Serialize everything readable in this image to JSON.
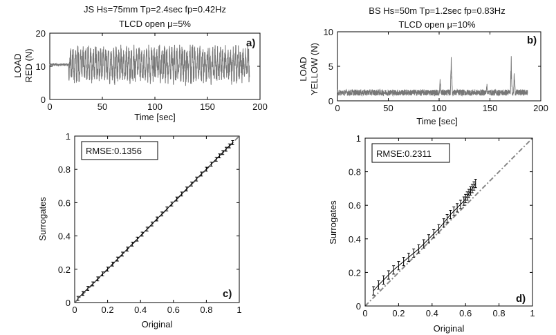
{
  "chart_data": [
    {
      "id": "a",
      "type": "line",
      "title": "JS Hs=75mm Tp=2.4sec fp=0.42Hz",
      "subtitle": "TLCD open μ=5%",
      "panel_label": "a)",
      "xlabel": "Time [sec]",
      "ylabel_lines": [
        "LOAD",
        "RED (N)"
      ],
      "xlim": [
        0,
        200
      ],
      "ylim": [
        0,
        20
      ],
      "xticks": [
        "0",
        "50",
        "100",
        "150",
        "200"
      ],
      "yticks": [
        "0",
        "10",
        "20"
      ],
      "line_color": "#777777",
      "signal": {
        "duration": 190,
        "quiet_until": 18,
        "baseline": 10.5,
        "min": 3,
        "max": 16.5
      }
    },
    {
      "id": "b",
      "type": "line",
      "title": "BS Hs=50m Tp=1.2sec fp=0.83Hz",
      "subtitle": "TLCD open μ=10%",
      "panel_label": "b)",
      "xlabel": "Time [sec]",
      "ylabel_lines": [
        "LOAD",
        "YELLOW (N)"
      ],
      "xlim": [
        0,
        200
      ],
      "ylim": [
        0,
        10
      ],
      "xticks": [
        "0",
        "50",
        "100",
        "150",
        "200"
      ],
      "yticks": [
        "0",
        "5",
        "10"
      ],
      "line_color": "#777777",
      "signal": {
        "duration": 187,
        "baseline": 1.2,
        "min": 0.3,
        "spikes": [
          {
            "x": 112,
            "y": 7.5
          },
          {
            "x": 171,
            "y": 6.8
          },
          {
            "x": 101,
            "y": 3.8
          },
          {
            "x": 174,
            "y": 5.0
          },
          {
            "x": 147,
            "y": 2.8
          }
        ]
      }
    },
    {
      "id": "c",
      "type": "line",
      "panel_label": "c)",
      "xlabel": "Original",
      "ylabel": "Surrogates",
      "xlim": [
        0,
        1
      ],
      "ylim": [
        0,
        1
      ],
      "xticks": [
        "0",
        "0.2",
        "0.4",
        "0.6",
        "0.8",
        "1"
      ],
      "yticks": [
        "0",
        "0.2",
        "0.4",
        "0.6",
        "0.8",
        "1"
      ],
      "rmse_label": "RMSE:0.1356",
      "reference_line": "y = x",
      "series": {
        "x": [
          0.02,
          0.05,
          0.08,
          0.11,
          0.14,
          0.17,
          0.2,
          0.23,
          0.26,
          0.29,
          0.32,
          0.35,
          0.38,
          0.41,
          0.44,
          0.47,
          0.5,
          0.53,
          0.56,
          0.59,
          0.62,
          0.65,
          0.68,
          0.71,
          0.74,
          0.77,
          0.8,
          0.83,
          0.86,
          0.88,
          0.9,
          0.92,
          0.94,
          0.96
        ],
        "y": [
          0.025,
          0.055,
          0.085,
          0.112,
          0.142,
          0.172,
          0.201,
          0.231,
          0.261,
          0.291,
          0.321,
          0.351,
          0.381,
          0.411,
          0.441,
          0.472,
          0.502,
          0.532,
          0.562,
          0.592,
          0.622,
          0.652,
          0.682,
          0.712,
          0.742,
          0.772,
          0.801,
          0.831,
          0.861,
          0.881,
          0.901,
          0.921,
          0.941,
          0.961
        ],
        "err": 0.012
      }
    },
    {
      "id": "d",
      "type": "line",
      "panel_label": "d)",
      "xlabel": "Original",
      "ylabel": "Surrogates",
      "xlim": [
        0,
        1
      ],
      "ylim": [
        0,
        1
      ],
      "xticks": [
        "0",
        "0.2",
        "0.4",
        "0.6",
        "0.8",
        "1"
      ],
      "yticks": [
        "0",
        "0.2",
        "0.4",
        "0.6",
        "0.8",
        "1"
      ],
      "rmse_label": "RMSE:0.2311",
      "reference_line": "y = x",
      "series": {
        "x": [
          0.05,
          0.08,
          0.11,
          0.14,
          0.17,
          0.2,
          0.23,
          0.26,
          0.29,
          0.32,
          0.35,
          0.38,
          0.41,
          0.44,
          0.47,
          0.49,
          0.51,
          0.53,
          0.55,
          0.57,
          0.59,
          0.6,
          0.61,
          0.62,
          0.63,
          0.64,
          0.65,
          0.66
        ],
        "y": [
          0.09,
          0.125,
          0.155,
          0.185,
          0.215,
          0.24,
          0.265,
          0.29,
          0.315,
          0.34,
          0.37,
          0.4,
          0.43,
          0.46,
          0.495,
          0.52,
          0.545,
          0.565,
          0.585,
          0.605,
          0.625,
          0.64,
          0.655,
          0.67,
          0.685,
          0.7,
          0.715,
          0.73
        ],
        "err": 0.025
      }
    }
  ]
}
